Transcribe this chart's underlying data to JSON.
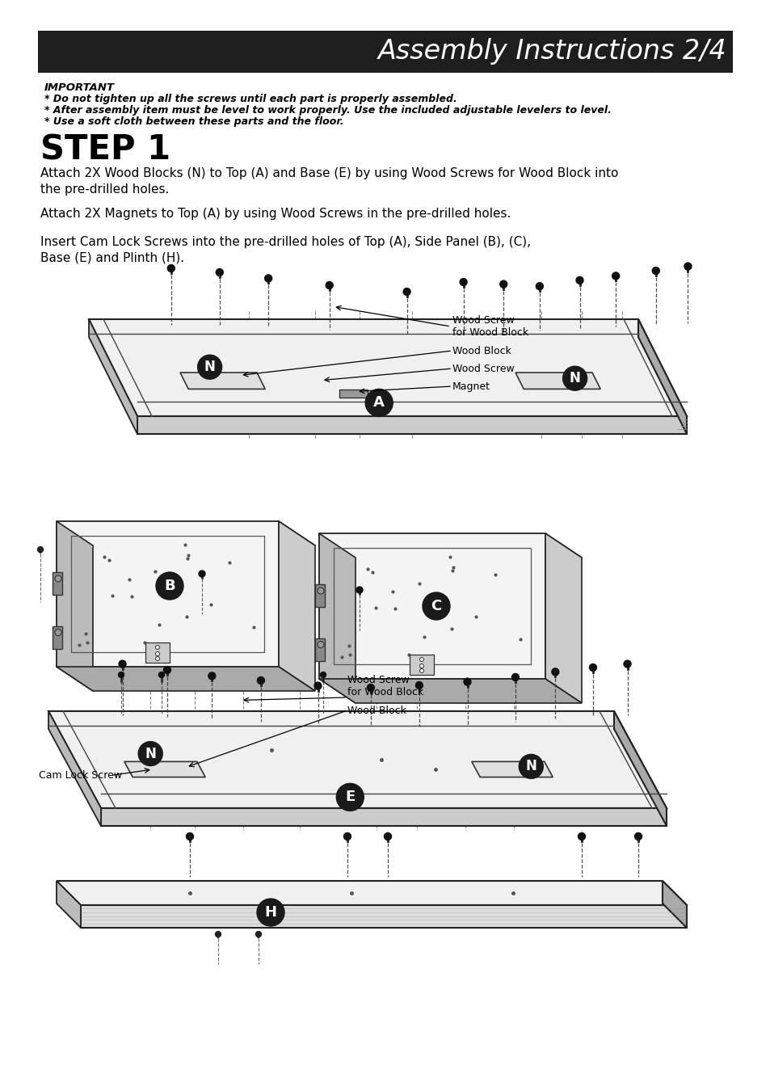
{
  "title": "Assembly Instructions 2/4",
  "title_bg": "#1e1e1e",
  "title_color": "#ffffff",
  "title_fontsize": 24,
  "important_label": "IMPORTANT",
  "important_lines": [
    "* Do not tighten up all the screws until each part is properly assembled.",
    "* After assembly item must be level to work properly. Use the included adjustable levelers to level.",
    "* Use a soft cloth between these parts and the floor."
  ],
  "step_label": "STEP 1",
  "step_text1": "Attach 2X Wood Blocks (N) to Top (A) and Base (E) by using Wood Screws for Wood Block into\nthe pre-drilled holes.",
  "step_text2": "Attach 2X Magnets to Top (A) by using Wood Screws in the pre-drilled holes.",
  "step_text3": "Insert Cam Lock Screws into the pre-drilled holes of Top (A), Side Panel (B), (C),\nBase (E) and Plinth (H).",
  "annotation_wood_screw_wood_block": "Wood Screw\nfor Wood Block",
  "annotation_wood_block": "Wood Block",
  "annotation_wood_screw": "Wood Screw",
  "annotation_magnet": "Magnet",
  "annotation_cam_lock": "Cam Lock Screw",
  "bg_color": "#ffffff",
  "text_color": "#000000",
  "circle_fill": "#1a1a1a",
  "circle_text": "#ffffff"
}
